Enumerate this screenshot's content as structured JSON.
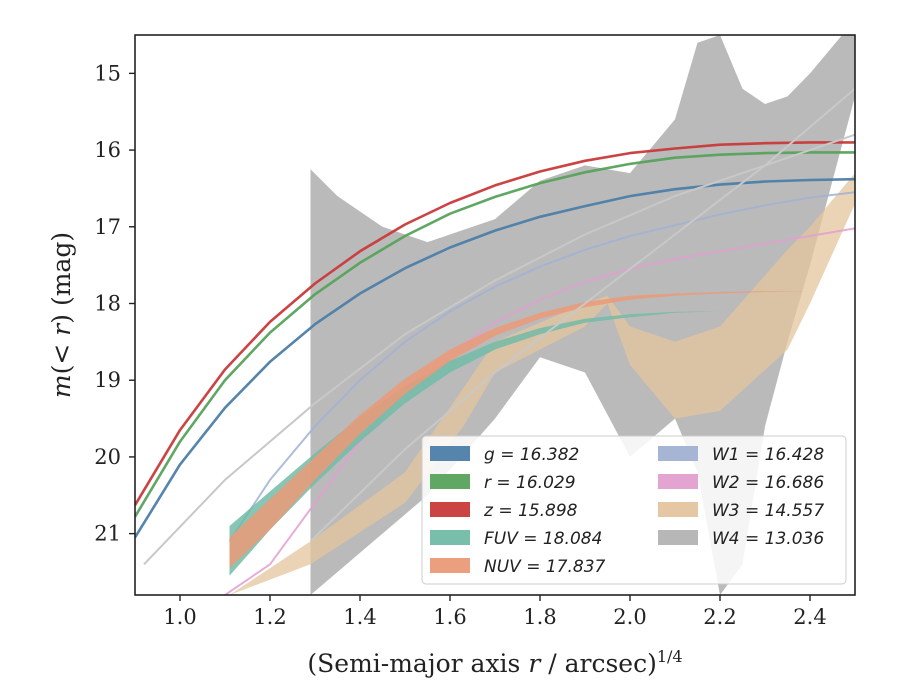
{
  "chart_data": {
    "type": "line",
    "xlabel": "(Semi-major axis r / arcsec)^{1/4}",
    "ylabel": "m(<r) (mag)",
    "xlim": [
      0.9,
      2.5
    ],
    "ylim": [
      21.8,
      14.5
    ],
    "y_inverted": true,
    "xticks": [
      "1.0",
      "1.2",
      "1.4",
      "1.6",
      "1.8",
      "2.0",
      "2.2",
      "2.4"
    ],
    "yticks": [
      "15",
      "16",
      "17",
      "18",
      "19",
      "20",
      "21"
    ],
    "legend_position": "lower-right",
    "legend": [
      {
        "label": "g = 16.382",
        "color": "#4c7ea8"
      },
      {
        "label": "r = 16.029",
        "color": "#56a25a"
      },
      {
        "label": "z = 15.898",
        "color": "#c9393a"
      },
      {
        "label": "FUV = 18.084",
        "color": "#72bba7"
      },
      {
        "label": "NUV = 17.837",
        "color": "#eb9a78"
      },
      {
        "label": "W1 = 16.428",
        "color": "#a2b1d3"
      },
      {
        "label": "W2 = 16.686",
        "color": "#e29fd0"
      },
      {
        "label": "W3 = 14.557",
        "color": "#e4c59e"
      },
      {
        "label": "W4 = 13.036",
        "color": "#b3b3b3"
      }
    ],
    "series": [
      {
        "name": "g = 16.382",
        "color": "#4c7ea8",
        "kind": "line",
        "x": [
          0.9,
          1.0,
          1.1,
          1.2,
          1.3,
          1.4,
          1.5,
          1.6,
          1.7,
          1.8,
          1.9,
          2.0,
          2.1,
          2.2,
          2.3,
          2.4,
          2.5
        ],
        "y": [
          21.05,
          20.1,
          19.36,
          18.76,
          18.27,
          17.87,
          17.54,
          17.27,
          17.05,
          16.87,
          16.73,
          16.6,
          16.51,
          16.45,
          16.41,
          16.39,
          16.38
        ]
      },
      {
        "name": "r = 16.029",
        "color": "#56a25a",
        "kind": "line",
        "x": [
          0.9,
          1.0,
          1.1,
          1.2,
          1.3,
          1.4,
          1.5,
          1.6,
          1.7,
          1.8,
          1.9,
          2.0,
          2.1,
          2.2,
          2.3,
          2.4,
          2.5
        ],
        "y": [
          20.78,
          19.8,
          19.0,
          18.38,
          17.88,
          17.47,
          17.12,
          16.83,
          16.61,
          16.43,
          16.29,
          16.18,
          16.1,
          16.06,
          16.04,
          16.03,
          16.03
        ]
      },
      {
        "name": "z = 15.898",
        "color": "#c9393a",
        "kind": "line",
        "x": [
          0.9,
          1.0,
          1.1,
          1.2,
          1.3,
          1.4,
          1.5,
          1.6,
          1.7,
          1.8,
          1.9,
          2.0,
          2.1,
          2.2,
          2.3,
          2.4,
          2.5
        ],
        "y": [
          20.63,
          19.65,
          18.86,
          18.24,
          17.74,
          17.32,
          16.97,
          16.69,
          16.46,
          16.28,
          16.14,
          16.04,
          15.98,
          15.93,
          15.91,
          15.9,
          15.9
        ]
      },
      {
        "name": "FUV = 18.084",
        "color": "#72bba7",
        "kind": "band",
        "x": [
          1.11,
          1.2,
          1.3,
          1.4,
          1.5,
          1.6,
          1.7,
          1.8,
          1.9,
          2.0,
          2.1,
          2.2,
          2.3,
          2.4,
          2.5
        ],
        "y_low": [
          20.9,
          20.45,
          19.95,
          19.48,
          19.08,
          18.75,
          18.5,
          18.32,
          18.2,
          18.14,
          18.11,
          18.1,
          18.09,
          18.09,
          18.09
        ],
        "y_high": [
          21.55,
          20.95,
          20.35,
          19.8,
          19.3,
          18.9,
          18.6,
          18.4,
          18.25,
          18.18,
          18.12,
          18.1,
          18.09,
          18.09,
          18.09
        ]
      },
      {
        "name": "NUV = 17.837",
        "color": "#eb9a78",
        "kind": "band",
        "x": [
          1.11,
          1.2,
          1.3,
          1.4,
          1.5,
          1.6,
          1.7,
          1.8,
          1.9,
          2.0,
          2.1,
          2.2,
          2.3,
          2.4,
          2.5
        ],
        "y_low": [
          21.05,
          20.55,
          20.0,
          19.45,
          18.98,
          18.6,
          18.32,
          18.12,
          17.98,
          17.9,
          17.87,
          17.85,
          17.84,
          17.84,
          17.84
        ],
        "y_high": [
          21.45,
          20.95,
          20.3,
          19.7,
          19.18,
          18.75,
          18.42,
          18.2,
          18.05,
          17.95,
          17.9,
          17.87,
          17.85,
          17.84,
          17.84
        ]
      },
      {
        "name": "W1 = 16.428",
        "color": "#a2b1d3",
        "kind": "line",
        "x": [
          1.11,
          1.2,
          1.3,
          1.4,
          1.5,
          1.6,
          1.7,
          1.8,
          1.9,
          2.0,
          2.1,
          2.2,
          2.3,
          2.4,
          2.5
        ],
        "y": [
          21.1,
          20.3,
          19.6,
          19.0,
          18.5,
          18.1,
          17.78,
          17.52,
          17.3,
          17.12,
          16.98,
          16.84,
          16.72,
          16.62,
          16.55
        ]
      },
      {
        "name": "W2 = 16.686",
        "color": "#e29fd0",
        "kind": "line",
        "x": [
          1.1,
          1.2,
          1.3,
          1.4,
          1.5,
          1.6,
          1.7,
          1.8,
          1.9,
          2.0,
          2.1,
          2.2,
          2.3,
          2.4,
          2.5
        ],
        "y": [
          21.8,
          21.4,
          20.6,
          19.8,
          19.15,
          18.65,
          18.25,
          17.95,
          17.72,
          17.55,
          17.42,
          17.32,
          17.22,
          17.12,
          17.02
        ]
      },
      {
        "name": "W3 = 14.557",
        "color": "#e4c59e",
        "kind": "band",
        "x": [
          1.11,
          1.29,
          1.5,
          1.63,
          1.7,
          1.9,
          1.95,
          2.0,
          2.1,
          2.2,
          2.35,
          2.4,
          2.5
        ],
        "y_low": [
          21.8,
          21.4,
          20.6,
          19.6,
          18.9,
          18.3,
          18.0,
          18.8,
          19.5,
          19.4,
          18.6,
          18.0,
          16.7
        ],
        "y_high": [
          21.8,
          21.1,
          20.2,
          19.1,
          18.5,
          18.0,
          17.9,
          18.3,
          18.5,
          18.3,
          17.3,
          17.0,
          16.3
        ]
      },
      {
        "name": "W4 = 13.036",
        "color": "#b3b3b3",
        "kind": "band",
        "x": [
          1.29,
          1.35,
          1.45,
          1.55,
          1.7,
          1.8,
          1.9,
          2.0,
          2.1,
          2.15,
          2.2,
          2.25,
          2.3,
          2.35,
          2.4,
          2.5
        ],
        "y_low": [
          21.8,
          21.5,
          21.0,
          20.5,
          19.5,
          18.7,
          18.9,
          20.0,
          19.5,
          20.2,
          21.8,
          21.4,
          19.6,
          18.5,
          17.5,
          15.3
        ],
        "y_high": [
          16.25,
          16.6,
          17.0,
          17.2,
          16.9,
          16.4,
          16.2,
          16.3,
          15.6,
          14.6,
          14.5,
          15.2,
          15.4,
          15.3,
          15.0,
          14.3
        ]
      }
    ]
  }
}
